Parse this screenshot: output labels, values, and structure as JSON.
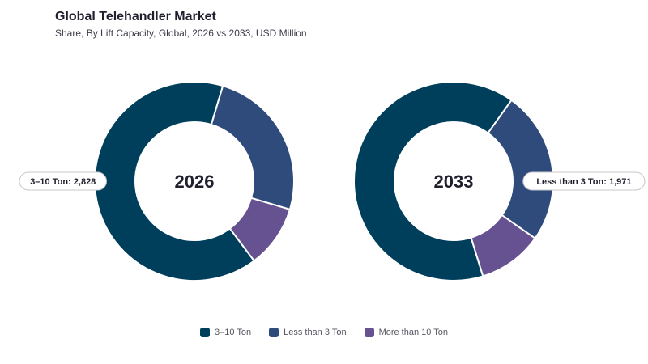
{
  "title": "Global Telehandler Market",
  "subtitle": "Share, By Lift Capacity, Global, 2026 vs 2033, USD Million",
  "chart_data": [
    {
      "type": "pie",
      "center_label": "2026",
      "categories": [
        "3–10 Ton",
        "Less than 3 Ton",
        "More than 10 Ton"
      ],
      "values": [
        2828,
        1089,
        444
      ],
      "colors": [
        "#003f5c",
        "#2f4b7c",
        "#665191"
      ],
      "callout": {
        "text": "3–10 Ton: 2,828",
        "category": "3–10 Ton"
      }
    },
    {
      "type": "pie",
      "center_label": "2033",
      "categories": [
        "3–10 Ton",
        "Less than 3 Ton",
        "More than 10 Ton"
      ],
      "values": [
        5120,
        1971,
        830
      ],
      "colors": [
        "#003f5c",
        "#2f4b7c",
        "#665191"
      ],
      "callout": {
        "text": "Less than 3 Ton: 1,971",
        "category": "Less than 3 Ton"
      }
    }
  ],
  "legend": [
    {
      "label": "3–10 Ton",
      "color": "#003f5c"
    },
    {
      "label": "Less than 3 Ton",
      "color": "#2f4b7c"
    },
    {
      "label": "More than 10 Ton",
      "color": "#665191"
    }
  ]
}
